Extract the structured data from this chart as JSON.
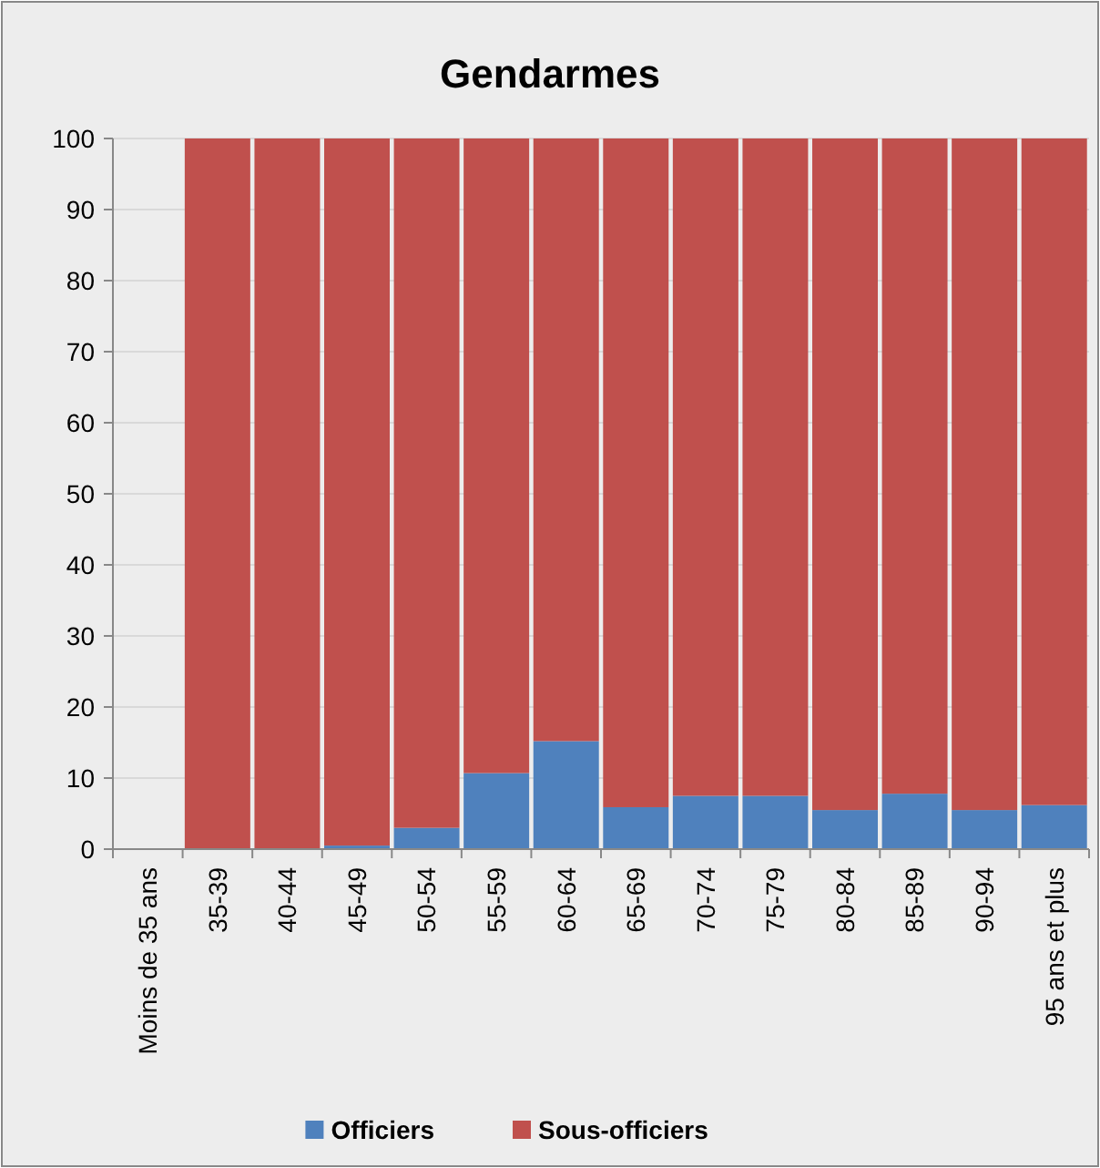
{
  "chart_data": {
    "type": "bar",
    "title": "Gendarmes",
    "stacked": true,
    "categories": [
      "Moins de 35 ans",
      "35-39",
      "40-44",
      "45-49",
      "50-54",
      "55-59",
      "60-64",
      "65-69",
      "70-74",
      "75-79",
      "80-84",
      "85-89",
      "90-94",
      "95 ans et plus"
    ],
    "series": [
      {
        "name": "Officiers",
        "color": "#4f81bd",
        "values": [
          0,
          0,
          0,
          0.5,
          3,
          10.7,
          15.2,
          5.9,
          7.5,
          7.5,
          5.5,
          7.8,
          5.5,
          6.2
        ]
      },
      {
        "name": "Sous-officiers",
        "color": "#c0504d",
        "values": [
          0,
          100,
          100,
          99.5,
          97,
          89.3,
          84.8,
          94.1,
          92.5,
          92.5,
          94.5,
          92.2,
          94.5,
          93.8
        ]
      }
    ],
    "ylim": [
      0,
      100
    ],
    "yticks": [
      0,
      10,
      20,
      30,
      40,
      50,
      60,
      70,
      80,
      90,
      100
    ],
    "grid": "y",
    "legend": "bottom"
  }
}
